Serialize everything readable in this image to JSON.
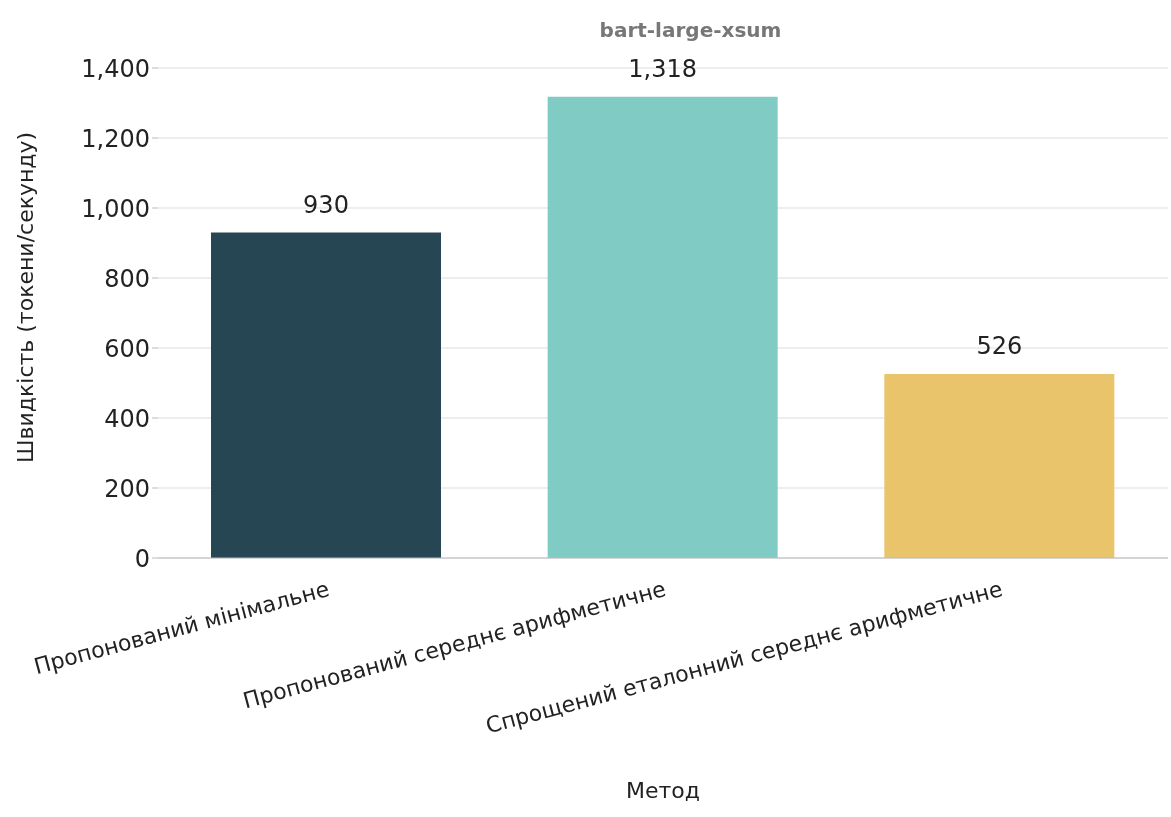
{
  "chart_data": {
    "type": "bar",
    "title": "bart-large-xsum",
    "xlabel": "Метод",
    "ylabel": "Швидкість (токени/секунду)",
    "categories": [
      "Пропонований мінімальне",
      "Пропонований середнє арифметичне",
      "Спрощений еталонний середнє арифметичне"
    ],
    "values": [
      930,
      1318,
      526
    ],
    "value_labels": [
      "930",
      "1,318",
      "526"
    ],
    "colors": [
      "#264653",
      "#80cbc4",
      "#e9c46a"
    ],
    "ylim": [
      0,
      1400
    ],
    "yticks": [
      0,
      200,
      400,
      600,
      800,
      {
        "value": 1000,
        "label": "1,000"
      },
      {
        "value": 1200,
        "label": "1,200"
      },
      {
        "value": 1400,
        "label": "1,400"
      }
    ],
    "grid": "y"
  }
}
